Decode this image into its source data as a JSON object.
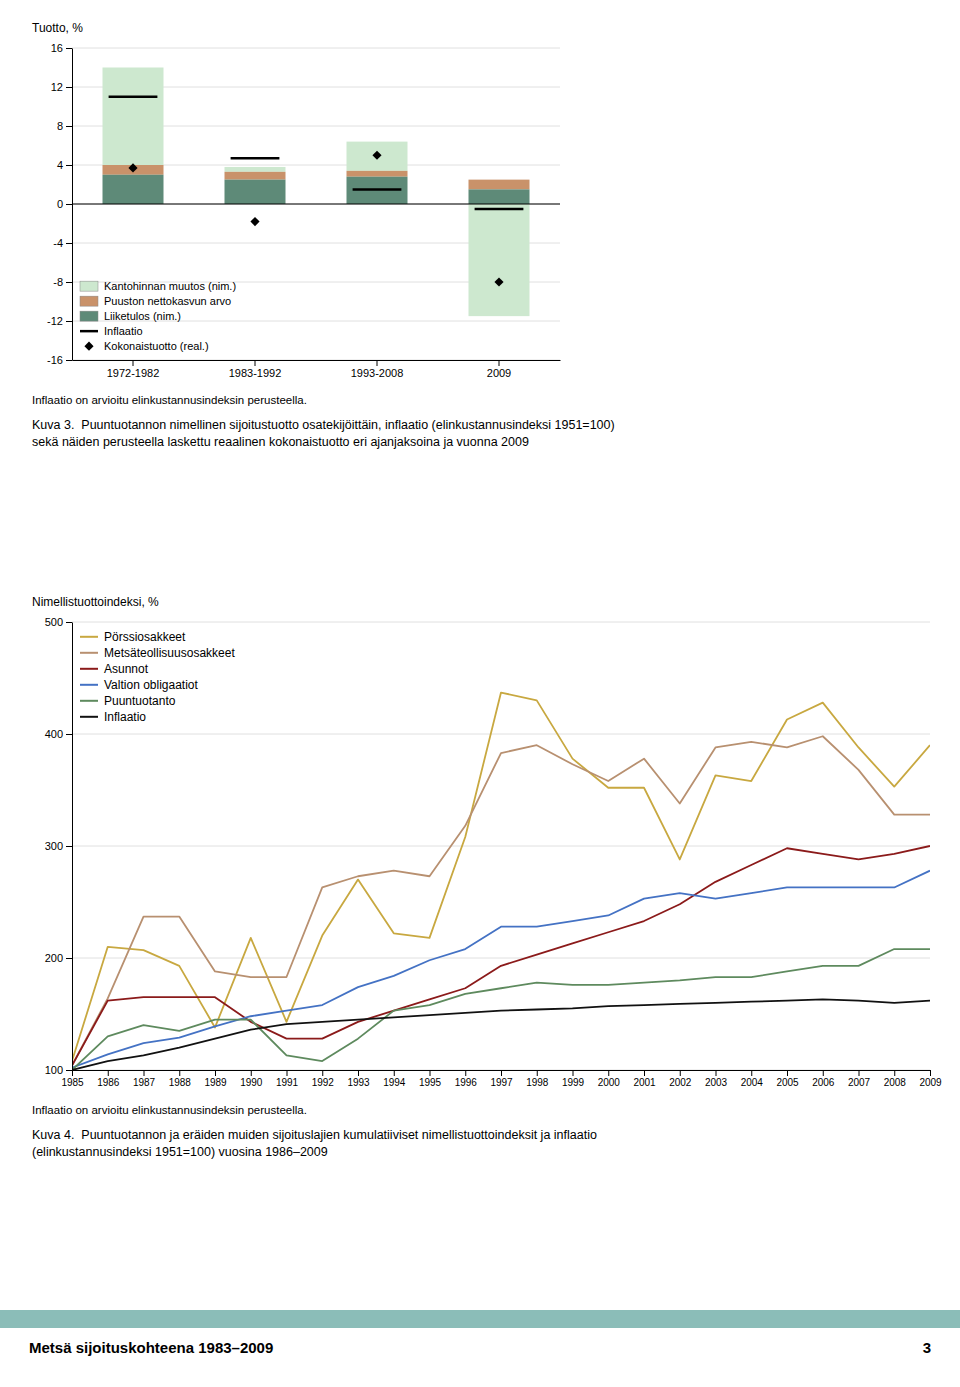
{
  "chart_data": [
    {
      "type": "bar",
      "stacked": true,
      "y_label": "Tuotto, %",
      "categories": [
        "1972-1982",
        "1983-1992",
        "1993-2008",
        "2009"
      ],
      "series": [
        {
          "name": "Kantohinnan muutos (nim.)",
          "color": "#cde8cf",
          "values": [
            10.0,
            0.5,
            3.0,
            -11.5
          ]
        },
        {
          "name": "Puuston nettokasvun arvo",
          "color": "#c9926a",
          "values": [
            1.0,
            0.8,
            0.6,
            1.0
          ]
        },
        {
          "name": "Liiketulos (nim.)",
          "color": "#5e8a78",
          "values": [
            3.0,
            2.5,
            2.8,
            1.5
          ]
        },
        {
          "name": "Inflaatio",
          "type": "scatter",
          "marker": "dash",
          "color": "#000000",
          "values": [
            11.0,
            4.7,
            1.5,
            -0.5
          ]
        },
        {
          "name": "Kokonaistuotto (real.)",
          "type": "scatter",
          "marker": "diamond",
          "color": "#000000",
          "values": [
            3.7,
            -1.8,
            5.0,
            -8.0
          ]
        }
      ],
      "ylim": [
        -16,
        16
      ],
      "yticks": [
        -16,
        -12,
        -8,
        -4,
        0,
        4,
        8,
        12,
        16
      ],
      "grid": true,
      "legend": "lower left",
      "annotations": [
        "Inflaatio on arvioitu elinkustannusindeksin perusteella.",
        "Kuva 3.  Puuntuotannon nimellinen sijoitustuotto osatekijöittäin, inflaatio (elinkustannusindeksi 1951=100)",
        "sekä näiden perusteella laskettu reaalinen kokonaistuotto eri ajanjaksoina ja vuonna 2009"
      ]
    },
    {
      "type": "line",
      "y_label": "Nimellistuottoindeksi, %",
      "x": [
        1985,
        1986,
        1987,
        1988,
        1989,
        1990,
        1991,
        1992,
        1993,
        1994,
        1995,
        1996,
        1997,
        1998,
        1999,
        2000,
        2001,
        2002,
        2003,
        2004,
        2005,
        2006,
        2007,
        2008,
        2009
      ],
      "xlim": [
        1985,
        2009
      ],
      "xticks": [
        1985,
        1986,
        1987,
        1988,
        1989,
        1990,
        1991,
        1992,
        1993,
        1994,
        1995,
        1996,
        1997,
        1998,
        1999,
        2000,
        2001,
        2002,
        2003,
        2004,
        2005,
        2006,
        2007,
        2008,
        2009
      ],
      "ylim": [
        100,
        500
      ],
      "yticks": [
        100,
        200,
        300,
        400,
        500
      ],
      "grid": true,
      "legend": "upper left",
      "series": [
        {
          "name": "Pörssiosakkeet",
          "color": "#c8a840",
          "values": [
            108,
            210,
            207,
            193,
            138,
            218,
            143,
            220,
            270,
            222,
            218,
            308,
            437,
            430,
            378,
            352,
            352,
            288,
            363,
            358,
            413,
            428,
            388,
            353,
            390
          ]
        },
        {
          "name": "Metsäteollisuusosakkeet",
          "color": "#b89070",
          "values": [
            104,
            164,
            237,
            237,
            188,
            183,
            183,
            263,
            273,
            278,
            273,
            318,
            383,
            390,
            373,
            358,
            378,
            338,
            388,
            393,
            388,
            398,
            368,
            328,
            328
          ]
        },
        {
          "name": "Asunnot",
          "color": "#8b1a1a",
          "values": [
            104,
            162,
            165,
            165,
            165,
            143,
            128,
            128,
            143,
            153,
            163,
            173,
            193,
            203,
            213,
            223,
            233,
            248,
            268,
            283,
            298,
            293,
            288,
            293,
            300
          ]
        },
        {
          "name": "Valtion obligaatiot",
          "color": "#4472c4",
          "values": [
            102,
            114,
            124,
            129,
            139,
            148,
            153,
            158,
            174,
            184,
            198,
            208,
            228,
            228,
            233,
            238,
            253,
            258,
            253,
            258,
            263,
            263,
            263,
            263,
            278
          ]
        },
        {
          "name": "Puuntuotanto",
          "color": "#5e8a5e",
          "values": [
            100,
            130,
            140,
            135,
            145,
            145,
            113,
            108,
            128,
            153,
            158,
            168,
            173,
            178,
            176,
            176,
            178,
            180,
            183,
            183,
            188,
            193,
            193,
            208,
            208
          ]
        },
        {
          "name": "Inflaatio",
          "color": "#111111",
          "values": [
            100,
            108,
            113,
            120,
            128,
            136,
            141,
            143,
            145,
            147,
            149,
            151,
            153,
            154,
            155,
            157,
            158,
            159,
            160,
            161,
            162,
            163,
            162,
            160,
            162
          ]
        }
      ],
      "annotations": [
        "Inflaatio on arvioitu elinkustannusindeksin perusteella.",
        "Kuva 4.  Puuntuotannon ja eräiden muiden sijoituslajien kumulatiiviset nimellistuottoindeksit ja inflaatio",
        "(elinkustannusindeksi 1951=100) vuosina 1986–2009"
      ]
    }
  ],
  "footer_text": "Metsä sijoituskohteena 1983–2009",
  "page_number": "3",
  "footer_color": "#8bbdb8"
}
